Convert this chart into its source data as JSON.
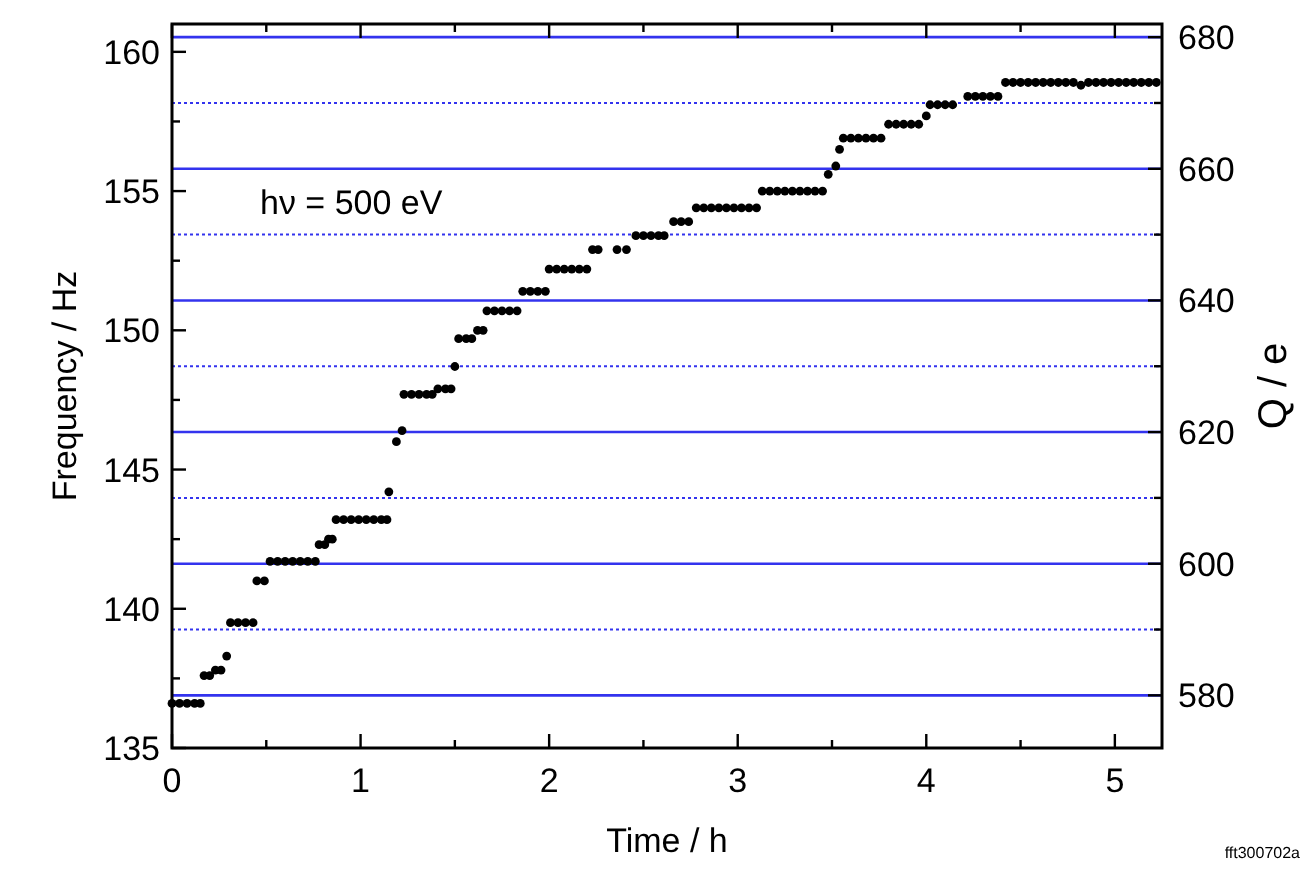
{
  "chart_data": {
    "type": "scatter",
    "xlabel": "Time / h",
    "ylabel": "Frequency / Hz",
    "y2label": "Q / e",
    "annotations": [
      "hν = 500 eV",
      "fft300702a"
    ],
    "xlim": [
      0,
      5.25
    ],
    "ylim": [
      135,
      161
    ],
    "y2lim": [
      572,
      682
    ],
    "xticks": [
      0,
      {
        "value": 0.5,
        "label": null
      },
      1,
      {
        "value": 1.5,
        "label": null
      },
      2,
      {
        "value": 2.5,
        "label": null
      },
      3,
      {
        "value": 3.5,
        "label": null
      },
      4,
      {
        "value": 4.5,
        "label": null
      },
      5
    ],
    "yticks": [
      135,
      {
        "value": 137.5,
        "label": null
      },
      140,
      {
        "value": 142.5,
        "label": null
      },
      145,
      {
        "value": 147.5,
        "label": null
      },
      150,
      {
        "value": 152.5,
        "label": null
      },
      155,
      {
        "value": 157.5,
        "label": null
      },
      160
    ],
    "y2ticks": [
      580,
      {
        "value": 590,
        "label": null
      },
      600,
      {
        "value": 610,
        "label": null
      },
      620,
      {
        "value": 630,
        "label": null
      },
      640,
      {
        "value": 650,
        "label": null
      },
      660,
      {
        "value": 670,
        "label": null
      },
      680
    ],
    "marker": "circle",
    "ref_lines": [
      {
        "axis": "y2",
        "value": 580,
        "color": "#3333ee",
        "line_style": "solid"
      },
      {
        "axis": "y2",
        "value": 590,
        "color": "#3333ee",
        "line_style": "dotted"
      },
      {
        "axis": "y2",
        "value": 600,
        "color": "#3333ee",
        "line_style": "solid"
      },
      {
        "axis": "y2",
        "value": 610,
        "color": "#3333ee",
        "line_style": "dotted"
      },
      {
        "axis": "y2",
        "value": 620,
        "color": "#3333ee",
        "line_style": "solid"
      },
      {
        "axis": "y2",
        "value": 630,
        "color": "#3333ee",
        "line_style": "dotted"
      },
      {
        "axis": "y2",
        "value": 640,
        "color": "#3333ee",
        "line_style": "solid"
      },
      {
        "axis": "y2",
        "value": 650,
        "color": "#3333ee",
        "line_style": "dotted"
      },
      {
        "axis": "y2",
        "value": 660,
        "color": "#3333ee",
        "line_style": "solid"
      },
      {
        "axis": "y2",
        "value": 670,
        "color": "#3333ee",
        "line_style": "dotted"
      },
      {
        "axis": "y2",
        "value": 680,
        "color": "#3333ee",
        "line_style": "solid"
      }
    ],
    "series": [
      {
        "color": "#000000",
        "x": [
          0,
          0.04,
          0.08,
          0.12,
          0.15,
          0.17,
          0.2,
          0.23,
          0.26,
          0.29,
          0.31,
          0.35,
          0.39,
          0.43,
          0.45,
          0.49,
          0.52,
          0.56,
          0.6,
          0.64,
          0.68,
          0.72,
          0.76,
          0.78,
          0.81,
          0.83,
          0.85,
          0.87,
          0.91,
          0.95,
          0.99,
          1.03,
          1.07,
          1.11,
          1.14,
          1.15,
          1.19,
          1.22,
          1.23,
          1.27,
          1.31,
          1.35,
          1.38,
          1.41,
          1.45,
          1.48,
          1.5,
          1.52,
          1.56,
          1.59,
          1.62,
          1.65,
          1.67,
          1.71,
          1.75,
          1.79,
          1.83,
          1.86,
          1.9,
          1.94,
          1.98,
          2,
          2.04,
          2.08,
          2.12,
          2.16,
          2.2,
          2.23,
          2.26,
          2.36,
          2.41,
          2.46,
          2.5,
          2.54,
          2.58,
          2.61,
          2.66,
          2.7,
          2.74,
          2.78,
          2.82,
          2.86,
          2.9,
          2.94,
          2.98,
          3.02,
          3.06,
          3.1,
          3.13,
          3.17,
          3.21,
          3.25,
          3.29,
          3.33,
          3.37,
          3.41,
          3.45,
          3.48,
          3.52,
          3.54,
          3.56,
          3.6,
          3.64,
          3.68,
          3.72,
          3.76,
          3.8,
          3.84,
          3.88,
          3.92,
          3.96,
          4,
          4.02,
          4.06,
          4.1,
          4.14,
          4.22,
          4.26,
          4.3,
          4.34,
          4.38,
          4.42,
          4.46,
          4.5,
          4.54,
          4.58,
          4.62,
          4.66,
          4.7,
          4.74,
          4.78,
          4.82,
          4.86,
          4.9,
          4.94,
          4.98,
          5.02,
          5.06,
          5.1,
          5.14,
          5.18,
          5.22
        ],
        "values": [
          136.6,
          136.6,
          136.6,
          136.6,
          136.6,
          137.6,
          137.6,
          137.8,
          137.8,
          138.3,
          139.5,
          139.5,
          139.5,
          139.5,
          141,
          141,
          141.7,
          141.7,
          141.7,
          141.7,
          141.7,
          141.7,
          141.7,
          142.3,
          142.3,
          142.5,
          142.5,
          143.2,
          143.2,
          143.2,
          143.2,
          143.2,
          143.2,
          143.2,
          143.2,
          144.2,
          146,
          146.4,
          147.7,
          147.7,
          147.7,
          147.7,
          147.7,
          147.9,
          147.9,
          147.9,
          148.7,
          149.7,
          149.7,
          149.7,
          150,
          150,
          150.7,
          150.7,
          150.7,
          150.7,
          150.7,
          151.4,
          151.4,
          151.4,
          151.4,
          152.2,
          152.2,
          152.2,
          152.2,
          152.2,
          152.2,
          152.9,
          152.9,
          152.9,
          152.9,
          153.4,
          153.4,
          153.4,
          153.4,
          153.4,
          153.9,
          153.9,
          153.9,
          154.4,
          154.4,
          154.4,
          154.4,
          154.4,
          154.4,
          154.4,
          154.4,
          154.4,
          155,
          155,
          155,
          155,
          155,
          155,
          155,
          155,
          155,
          155.6,
          155.9,
          156.5,
          156.9,
          156.9,
          156.9,
          156.9,
          156.9,
          156.9,
          157.4,
          157.4,
          157.4,
          157.4,
          157.4,
          157.7,
          158.1,
          158.1,
          158.1,
          158.1,
          158.4,
          158.4,
          158.4,
          158.4,
          158.4,
          158.9,
          158.9,
          158.9,
          158.9,
          158.9,
          158.9,
          158.9,
          158.9,
          158.9,
          158.9,
          158.8,
          158.9,
          158.9,
          158.9,
          158.9,
          158.9,
          158.9,
          158.9,
          158.9,
          158.9,
          158.9
        ]
      }
    ]
  }
}
